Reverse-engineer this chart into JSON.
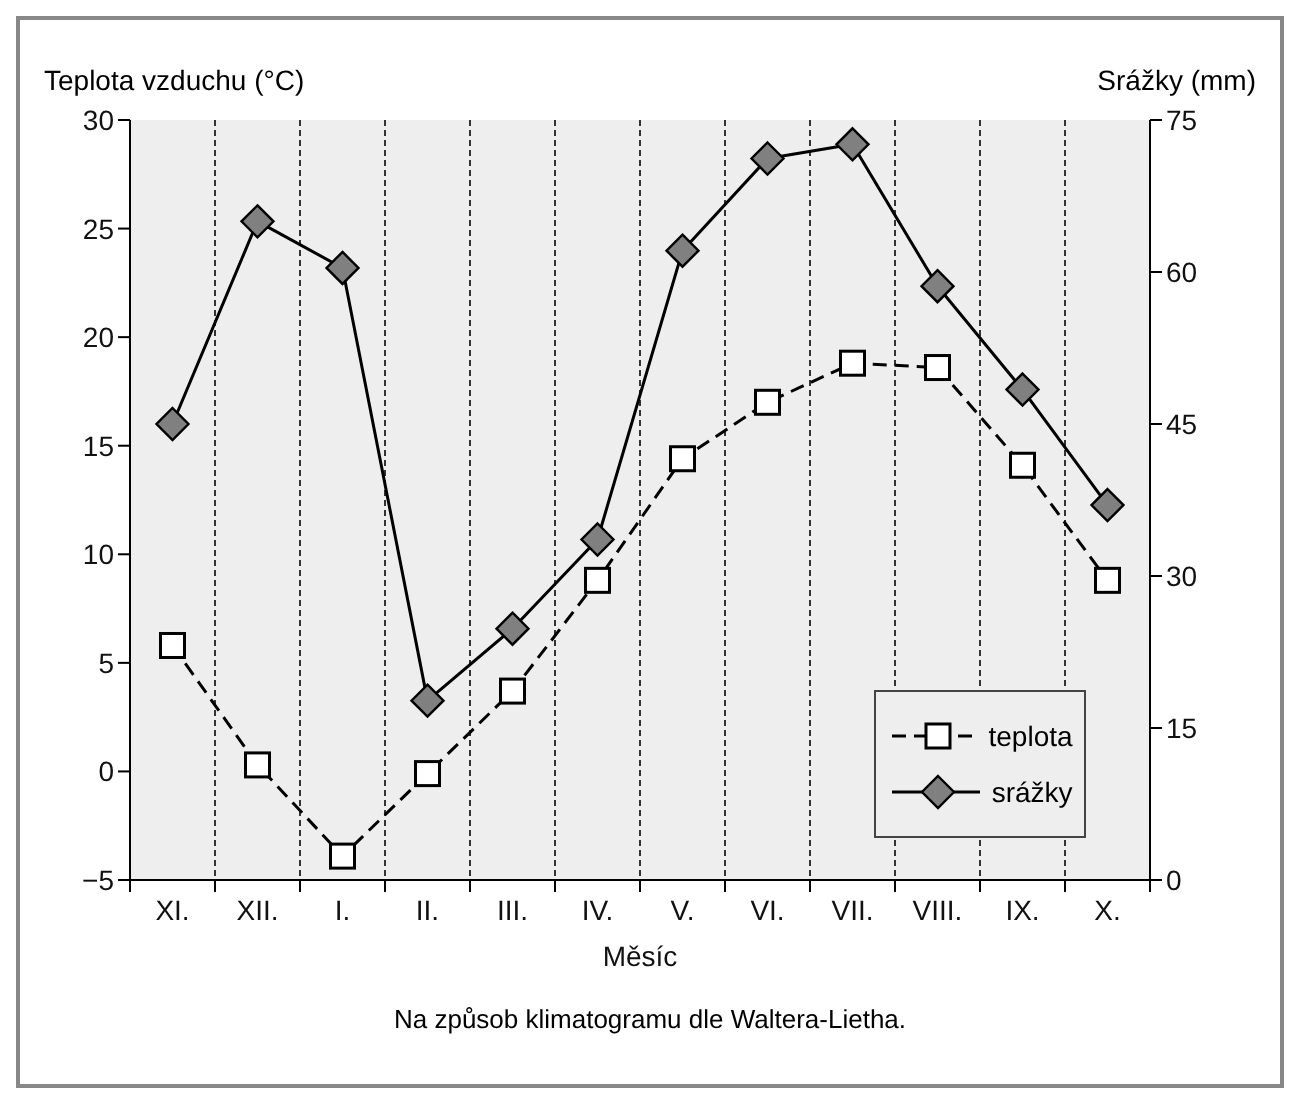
{
  "chart_data": {
    "type": "line",
    "categories": [
      "XI.",
      "XII.",
      "I.",
      "II.",
      "III.",
      "IV.",
      "V.",
      "VI.",
      "VII.",
      "VIII.",
      "IX.",
      "X."
    ],
    "series": [
      {
        "name": "teplota",
        "color": "#000000",
        "marker": "square",
        "line_style": "dashed",
        "values": [
          5.8,
          0.3,
          -3.9,
          -0.1,
          3.7,
          8.8,
          14.4,
          17.0,
          18.8,
          18.6,
          14.1,
          8.8
        ]
      },
      {
        "name": "srážky",
        "color": "#808080",
        "marker": "diamond",
        "line_style": "solid",
        "axis": "y2",
        "values": [
          45,
          65,
          60.4,
          17.7,
          24.8,
          33.6,
          62.1,
          71.2,
          72.6,
          58.6,
          48.4,
          37.0
        ]
      }
    ],
    "xlabel": "Měsíc",
    "ylabel": "Teplota vzduchu (°C)",
    "y2label": "Srážky (mm)",
    "ylim": [
      -5,
      30
    ],
    "yticks": [
      -5,
      0,
      5,
      10,
      15,
      20,
      25,
      30
    ],
    "y2lim": [
      0,
      75
    ],
    "y2ticks": [
      0,
      15,
      30,
      45,
      60,
      75
    ],
    "grid": "x",
    "legend": "bottom right",
    "annotations": [
      "Na způsob klimatogramu dle Waltera-Lietha."
    ]
  }
}
